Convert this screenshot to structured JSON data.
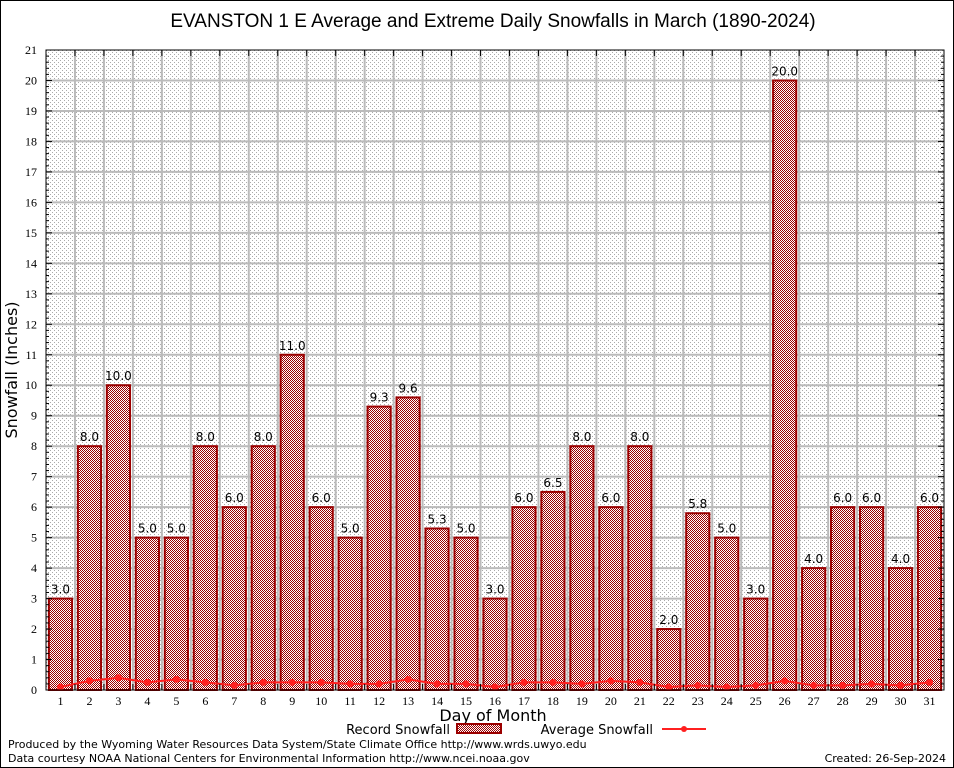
{
  "chart_data": {
    "type": "bar",
    "title": "EVANSTON 1 E Average and Extreme Daily Snowfalls in March (1890-2024)",
    "xlabel": "Day of Month",
    "ylabel": "Snowfall (Inches)",
    "ylim": [
      0,
      21
    ],
    "yticks": [
      0,
      1,
      2,
      3,
      4,
      5,
      6,
      7,
      8,
      9,
      10,
      11,
      12,
      13,
      14,
      15,
      16,
      17,
      18,
      19,
      20,
      21
    ],
    "grid": true,
    "categories": [
      "1",
      "2",
      "3",
      "4",
      "5",
      "6",
      "7",
      "8",
      "9",
      "10",
      "11",
      "12",
      "13",
      "14",
      "15",
      "16",
      "17",
      "18",
      "19",
      "20",
      "21",
      "22",
      "23",
      "24",
      "25",
      "26",
      "27",
      "28",
      "29",
      "30",
      "31"
    ],
    "series": [
      {
        "name": "Record Snowfall",
        "type": "bar",
        "color": "#9b0000",
        "values": [
          3.0,
          8.0,
          10.0,
          5.0,
          5.0,
          8.0,
          6.0,
          8.0,
          11.0,
          6.0,
          5.0,
          9.3,
          9.6,
          5.3,
          5.0,
          3.0,
          6.0,
          6.5,
          8.0,
          6.0,
          8.0,
          2.0,
          5.8,
          5.0,
          3.0,
          20.0,
          4.0,
          6.0,
          6.0,
          4.0,
          6.0
        ],
        "labels": [
          "3.0",
          "8.0",
          "10.0",
          "5.0",
          "5.0",
          "8.0",
          "6.0",
          "8.0",
          "11.0",
          "6.0",
          "5.0",
          "9.3",
          "9.6",
          "5.3",
          "5.0",
          "3.0",
          "6.0",
          "6.5",
          "8.0",
          "6.0",
          "8.0",
          "2.0",
          "5.8",
          "5.0",
          "3.0",
          "20.0",
          "4.0",
          "6.0",
          "6.0",
          "4.0",
          "6.0"
        ]
      },
      {
        "name": "Average Snowfall",
        "type": "line",
        "color": "#ff2020",
        "values": [
          0.1,
          0.3,
          0.4,
          0.25,
          0.35,
          0.25,
          0.15,
          0.25,
          0.25,
          0.25,
          0.2,
          0.2,
          0.35,
          0.2,
          0.2,
          0.1,
          0.25,
          0.25,
          0.2,
          0.3,
          0.25,
          0.1,
          0.15,
          0.1,
          0.15,
          0.3,
          0.15,
          0.15,
          0.2,
          0.15,
          0.25
        ]
      }
    ],
    "legend_position": "bottom-center"
  },
  "footer": {
    "line1": "Produced by the Wyoming Water Resources Data System/State Climate Office http://www.wrds.uwyo.edu",
    "line2": "Data courtesy NOAA National Centers for Environmental Information http://www.ncei.noaa.gov",
    "created": "Created: 26-Sep-2024"
  }
}
